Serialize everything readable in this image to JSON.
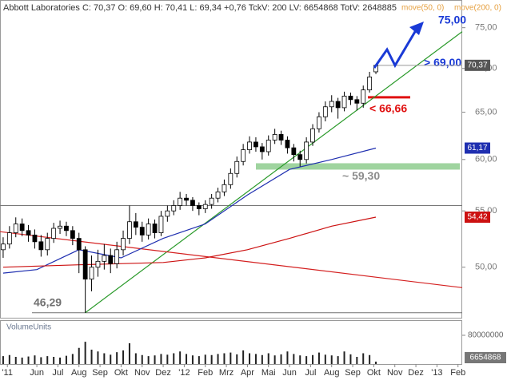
{
  "chart_data": {
    "type": "candlestick",
    "title": "Abbott Laboratories C: 70,37 O: 69,60 H: 70,41 L: 69,34 +0,76 TckV: 200 LV: 6654868 TotV: 2648885",
    "log_scale": true,
    "xlim": [
      3.25,
      25.2
    ],
    "ylim": [
      45.9,
      78.6
    ],
    "yticks": [
      {
        "value": 75,
        "label": "75,00"
      },
      {
        "value": 70,
        "label": "70,00"
      },
      {
        "value": 65,
        "label": "65,00"
      },
      {
        "value": 60,
        "label": "60,00"
      },
      {
        "value": 55,
        "label": "55,00"
      },
      {
        "value": 50,
        "label": "50,00"
      }
    ],
    "xticks": [
      {
        "value": 3.6,
        "label": "'11"
      },
      {
        "value": 5,
        "label": "Jun"
      },
      {
        "value": 6,
        "label": "Jul"
      },
      {
        "value": 7,
        "label": "Aug"
      },
      {
        "value": 8,
        "label": "Sep"
      },
      {
        "value": 9,
        "label": "Okt"
      },
      {
        "value": 10,
        "label": "Nov"
      },
      {
        "value": 11,
        "label": "Dez"
      },
      {
        "value": 12,
        "label": "'12"
      },
      {
        "value": 13,
        "label": "Feb"
      },
      {
        "value": 14,
        "label": "Mrz"
      },
      {
        "value": 15,
        "label": "Apr"
      },
      {
        "value": 16,
        "label": "Mai"
      },
      {
        "value": 17,
        "label": "Jun"
      },
      {
        "value": 18,
        "label": "Jul"
      },
      {
        "value": 19,
        "label": "Aug"
      },
      {
        "value": 20,
        "label": "Sep"
      },
      {
        "value": 21,
        "label": "Okt"
      },
      {
        "value": 22,
        "label": "Nov"
      },
      {
        "value": 23,
        "label": "Dez"
      },
      {
        "value": 24,
        "label": "'13"
      },
      {
        "value": 25,
        "label": "Feb"
      }
    ],
    "candles": {
      "x": [
        3.4,
        3.7,
        4.0,
        4.3,
        4.6,
        4.9,
        5.2,
        5.5,
        5.8,
        6.1,
        6.4,
        6.7,
        7.0,
        7.3,
        7.6,
        7.9,
        8.2,
        8.5,
        8.8,
        9.1,
        9.4,
        9.7,
        10.0,
        10.3,
        10.6,
        10.9,
        11.2,
        11.5,
        11.8,
        12.1,
        12.4,
        12.7,
        13.0,
        13.3,
        13.6,
        13.9,
        14.2,
        14.5,
        14.8,
        15.1,
        15.4,
        15.7,
        16.0,
        16.3,
        16.6,
        16.9,
        17.2,
        17.5,
        17.8,
        18.1,
        18.4,
        18.7,
        19.0,
        19.3,
        19.6,
        19.9,
        20.2,
        20.5,
        20.8,
        21.1
      ],
      "open": [
        51.5,
        52.0,
        53.0,
        53.8,
        53.2,
        52.8,
        52.2,
        51.5,
        52.5,
        53.4,
        53.6,
        53.2,
        52.5,
        51.5,
        49.0,
        50.0,
        50.5,
        51.0,
        50.3,
        51.5,
        52.5,
        54.0,
        53.5,
        52.8,
        53.8,
        53.0,
        54.5,
        55.0,
        55.5,
        56.2,
        56.0,
        55.5,
        55.2,
        55.6,
        56.2,
        56.8,
        57.5,
        58.6,
        59.8,
        61.0,
        61.8,
        61.3,
        60.8,
        62.0,
        62.6,
        62.0,
        61.2,
        60.5,
        60.0,
        61.8,
        63.2,
        64.5,
        65.6,
        66.2,
        65.5,
        66.8,
        66.4,
        66.0,
        67.5,
        69.6
      ],
      "high": [
        52.6,
        53.6,
        54.4,
        54.3,
        53.7,
        53.3,
        52.8,
        53.0,
        53.9,
        54.1,
        54.0,
        53.6,
        53.0,
        51.8,
        51.0,
        51.5,
        52.0,
        51.6,
        52.2,
        53.2,
        55.5,
        54.8,
        54.0,
        54.3,
        54.2,
        55.0,
        55.5,
        56.0,
        56.8,
        56.6,
        56.3,
        55.8,
        56.0,
        56.6,
        57.2,
        58.0,
        59.1,
        60.3,
        61.6,
        62.4,
        62.3,
        61.7,
        62.5,
        63.2,
        63.0,
        62.4,
        61.6,
        60.9,
        62.3,
        63.7,
        65.0,
        66.2,
        66.9,
        66.6,
        67.3,
        67.2,
        66.8,
        68.0,
        69.6,
        70.41
      ],
      "low": [
        50.8,
        51.6,
        52.6,
        52.7,
        52.2,
        51.6,
        50.9,
        51.0,
        52.1,
        52.9,
        52.7,
        51.9,
        49.5,
        46.29,
        48.0,
        49.2,
        49.8,
        49.5,
        49.9,
        51.0,
        52.0,
        52.8,
        52.2,
        52.4,
        52.5,
        52.7,
        54.0,
        54.6,
        55.1,
        55.5,
        55.0,
        54.6,
        54.8,
        55.2,
        55.8,
        56.4,
        57.1,
        58.2,
        59.4,
        60.6,
        60.8,
        60.0,
        60.4,
        61.6,
        61.5,
        60.6,
        59.8,
        59.3,
        59.6,
        61.4,
        62.8,
        64.0,
        65.0,
        64.3,
        65.1,
        65.8,
        65.2,
        65.5,
        67.2,
        69.34
      ],
      "close": [
        52.0,
        53.0,
        53.8,
        53.2,
        52.8,
        52.2,
        51.5,
        52.5,
        53.4,
        53.6,
        53.2,
        52.5,
        51.5,
        49.0,
        50.0,
        50.5,
        51.0,
        50.3,
        51.5,
        52.5,
        54.0,
        53.5,
        52.8,
        53.8,
        53.0,
        54.5,
        55.0,
        55.5,
        56.2,
        56.0,
        55.5,
        55.2,
        55.6,
        56.2,
        56.8,
        57.5,
        58.6,
        59.8,
        61.0,
        61.8,
        61.3,
        60.8,
        62.0,
        62.6,
        62.0,
        61.2,
        60.5,
        60.0,
        61.8,
        63.2,
        64.5,
        65.6,
        66.2,
        65.5,
        66.8,
        66.4,
        66.0,
        67.5,
        69.0,
        70.37
      ],
      "close_label": "70,37",
      "label_color": "#555555"
    },
    "series": [
      {
        "name": "move(50, 0)",
        "color": "#1f2fb0",
        "x": [
          3.4,
          5,
          7,
          9,
          11,
          13,
          15,
          17,
          19,
          21.1
        ],
        "values": [
          49.5,
          49.8,
          51.5,
          50.8,
          52.5,
          53.8,
          56.5,
          59.0,
          60.0,
          61.17
        ],
        "last_label": "61,17"
      },
      {
        "name": "move(200, 0)",
        "color": "#cc1111",
        "x": [
          3.4,
          7,
          11,
          13,
          15,
          17,
          19,
          21.1
        ],
        "values": [
          50.0,
          50.2,
          50.4,
          50.8,
          51.5,
          52.5,
          53.6,
          54.42
        ],
        "last_label": "54,42"
      }
    ],
    "legend_color": "#e6a040",
    "trendlines": [
      {
        "color": "#2a9a2a",
        "x": [
          7.3,
          25.2
        ],
        "values": [
          46.29,
          74.5
        ]
      },
      {
        "color": "#d42020",
        "x": [
          3.25,
          25.2
        ],
        "values": [
          53.1,
          48.3
        ]
      }
    ],
    "levels": [
      55.5
    ],
    "annotations": [
      {
        "text": "75,00",
        "value": 75,
        "color": "#1a3ad6"
      },
      {
        "text": "> 69,00",
        "value": 69,
        "color": "#1a3ad6"
      },
      {
        "text": "< 66,66",
        "value": 66.66,
        "color": "#e01010"
      },
      {
        "text": "~ 59,30",
        "value": 59.3,
        "color": "#8c8c8c"
      },
      {
        "text": "46,29",
        "value": 46.29,
        "color": "#707070"
      }
    ],
    "volume": {
      "name": "VolumeUnits",
      "color": "#222222",
      "ylim": [
        0,
        120000000
      ],
      "yticks": [
        80000000
      ],
      "values": [
        22000000,
        25000000,
        20000000,
        18000000,
        21000000,
        24000000,
        19000000,
        22000000,
        20000000,
        18000000,
        23000000,
        28000000,
        45000000,
        62000000,
        40000000,
        35000000,
        30000000,
        26000000,
        33000000,
        38000000,
        58000000,
        30000000,
        25000000,
        22000000,
        24000000,
        28000000,
        26000000,
        30000000,
        35000000,
        28000000,
        24000000,
        22000000,
        26000000,
        25000000,
        28000000,
        30000000,
        32000000,
        27000000,
        38000000,
        30000000,
        28000000,
        25000000,
        30000000,
        24000000,
        27000000,
        35000000,
        28000000,
        24000000,
        22000000,
        25000000,
        32000000,
        26000000,
        24000000,
        22000000,
        35000000,
        27000000,
        20000000,
        30000000,
        25000000,
        6654868
      ]
    }
  }
}
